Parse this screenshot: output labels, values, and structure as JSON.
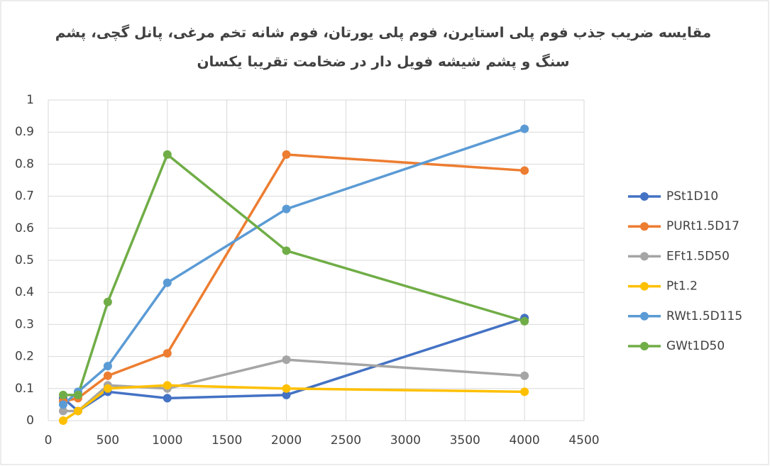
{
  "chart_data": {
    "type": "line",
    "title": [
      "مقایسه ضریب جذب فوم پلی استایرن، فوم پلی یورتان، فوم شانه تخم مرغی، پانل گچی، پشم",
      "سنگ و پشم شیشه فویل دار در ضخامت تقریبا یکسان"
    ],
    "x": [
      125,
      250,
      500,
      1000,
      2000,
      4000
    ],
    "series": [
      {
        "name": "PSt1D10",
        "color": "#4472c4",
        "values": [
          0.07,
          0.03,
          0.09,
          0.07,
          0.08,
          0.32
        ]
      },
      {
        "name": "PURt1.5D17",
        "color": "#ed7d31",
        "values": [
          0.06,
          0.07,
          0.14,
          0.21,
          0.83,
          0.78
        ]
      },
      {
        "name": "EFt1.5D50",
        "color": "#a5a5a5",
        "values": [
          0.03,
          0.03,
          0.11,
          0.1,
          0.19,
          0.14
        ]
      },
      {
        "name": "Pt1.2",
        "color": "#ffc000",
        "values": [
          0.0,
          0.03,
          0.1,
          0.11,
          0.1,
          0.09
        ]
      },
      {
        "name": "RWt1.5D115",
        "color": "#5b9bd5",
        "values": [
          0.05,
          0.09,
          0.17,
          0.43,
          0.66,
          0.91
        ]
      },
      {
        "name": "GWt1D50",
        "color": "#70ad47",
        "values": [
          0.08,
          0.08,
          0.37,
          0.83,
          0.53,
          0.31
        ]
      }
    ],
    "xlim": [
      0,
      4500
    ],
    "xticks": [
      0,
      500,
      1000,
      1500,
      2000,
      2500,
      3000,
      3500,
      4000,
      4500
    ],
    "ylim": [
      0,
      1
    ],
    "yticks": [
      0,
      0.1,
      0.2,
      0.3,
      0.4,
      0.5,
      0.6,
      0.7,
      0.8,
      0.9,
      1
    ],
    "grid": true,
    "legend": "right"
  }
}
